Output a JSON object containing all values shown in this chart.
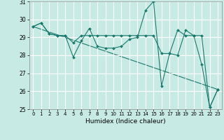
{
  "xlabel": "Humidex (Indice chaleur)",
  "xlim": [
    -0.5,
    23.5
  ],
  "ylim": [
    25,
    31
  ],
  "yticks": [
    25,
    26,
    27,
    28,
    29,
    30,
    31
  ],
  "xticks": [
    0,
    1,
    2,
    3,
    4,
    5,
    6,
    7,
    8,
    9,
    10,
    11,
    12,
    13,
    14,
    15,
    16,
    17,
    18,
    19,
    20,
    21,
    22,
    23
  ],
  "bg_color": "#c8eae4",
  "grid_color": "#ffffff",
  "line_color": "#1a7a6e",
  "series1_x": [
    0,
    1,
    2,
    3,
    4,
    5,
    6,
    7,
    8,
    9,
    10,
    11,
    12,
    13,
    14,
    15,
    16,
    17,
    18,
    19,
    20,
    21,
    22,
    23
  ],
  "series1_y": [
    29.6,
    29.8,
    29.2,
    29.1,
    29.1,
    27.9,
    28.8,
    29.5,
    28.5,
    28.4,
    28.4,
    28.5,
    28.9,
    29.0,
    30.5,
    31.0,
    26.3,
    28.1,
    28.0,
    29.4,
    29.1,
    27.5,
    25.1,
    26.1
  ],
  "series2_x": [
    0,
    1,
    2,
    3,
    4,
    5,
    6,
    7,
    8,
    9,
    10,
    11,
    12,
    13,
    14,
    15,
    16,
    17,
    18,
    19,
    20,
    21,
    22,
    23
  ],
  "series2_y": [
    29.6,
    29.8,
    29.2,
    29.1,
    29.1,
    28.7,
    29.1,
    29.1,
    29.1,
    29.1,
    29.1,
    29.1,
    29.1,
    29.1,
    29.1,
    29.1,
    28.1,
    28.1,
    29.4,
    29.1,
    29.1,
    29.1,
    25.1,
    26.1
  ],
  "series3_x": [
    0,
    23
  ],
  "series3_y": [
    29.6,
    26.1
  ]
}
